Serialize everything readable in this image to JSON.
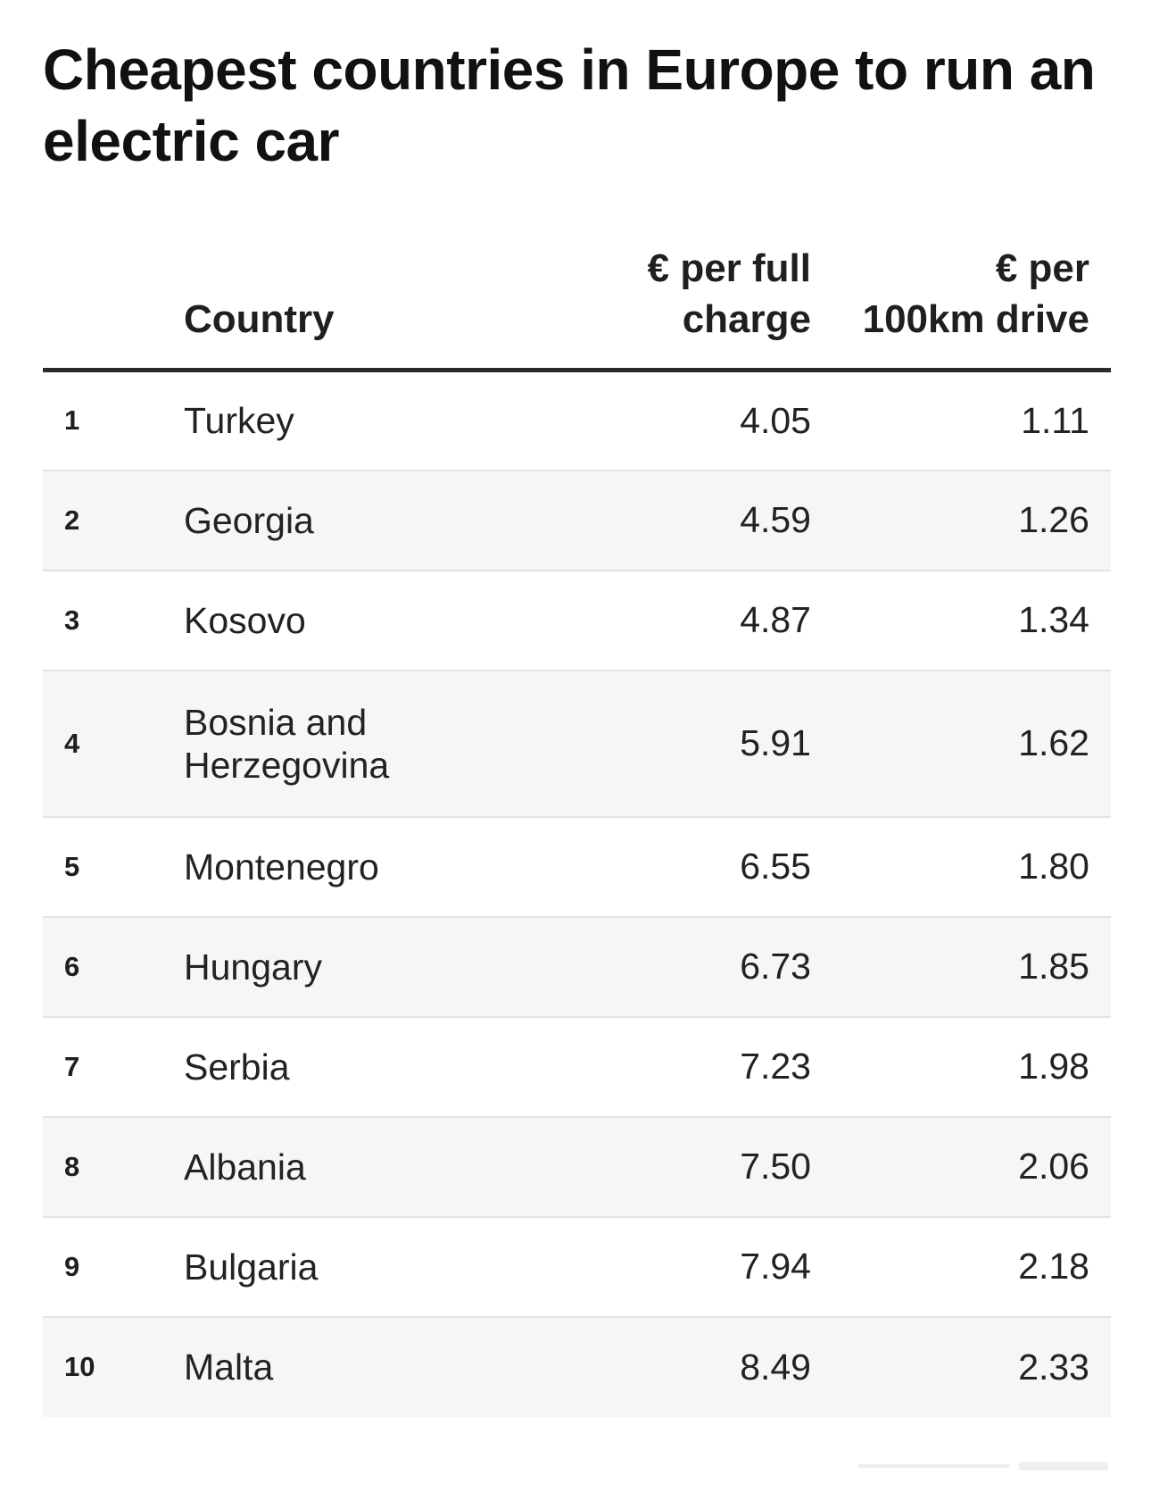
{
  "title": "Cheapest countries in Europe to run an electric car",
  "table": {
    "headers": {
      "rank": "",
      "country": "Country",
      "charge_line1": "€ per full",
      "charge_line2": "charge",
      "drive_line1": "€ per",
      "drive_line2": "100km drive"
    },
    "rows": [
      {
        "rank": "1",
        "country": "Turkey",
        "charge": "4.05",
        "drive": "1.11"
      },
      {
        "rank": "2",
        "country": "Georgia",
        "charge": "4.59",
        "drive": "1.26"
      },
      {
        "rank": "3",
        "country": "Kosovo",
        "charge": "4.87",
        "drive": "1.34"
      },
      {
        "rank": "4",
        "country": "Bosnia and Herzegovina",
        "charge": "5.91",
        "drive": "1.62"
      },
      {
        "rank": "5",
        "country": "Montenegro",
        "charge": "6.55",
        "drive": "1.80"
      },
      {
        "rank": "6",
        "country": "Hungary",
        "charge": "6.73",
        "drive": "1.85"
      },
      {
        "rank": "7",
        "country": "Serbia",
        "charge": "7.23",
        "drive": "1.98"
      },
      {
        "rank": "8",
        "country": "Albania",
        "charge": "7.50",
        "drive": "2.06"
      },
      {
        "rank": "9",
        "country": "Bulgaria",
        "charge": "7.94",
        "drive": "2.18"
      },
      {
        "rank": "10",
        "country": "Malta",
        "charge": "8.49",
        "drive": "2.33"
      }
    ]
  },
  "colors": {
    "row_alt_background": "#f6f6f6",
    "header_rule": "#2b2b2b",
    "row_divider": "#e4e4e4"
  }
}
